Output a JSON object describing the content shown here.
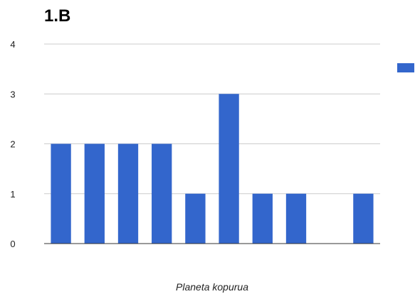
{
  "chart_data": {
    "type": "bar",
    "title": "1.B",
    "xlabel": "Planeta kopurua",
    "ylabel": "",
    "ylim": [
      0,
      4
    ],
    "yticks": [
      "0",
      "1",
      "2",
      "3",
      "4"
    ],
    "grid": true,
    "legend": "right",
    "series": [
      {
        "color": "#3366cc",
        "values": [
          2,
          2,
          2,
          2,
          1,
          3,
          1,
          1,
          0,
          1
        ]
      }
    ]
  }
}
